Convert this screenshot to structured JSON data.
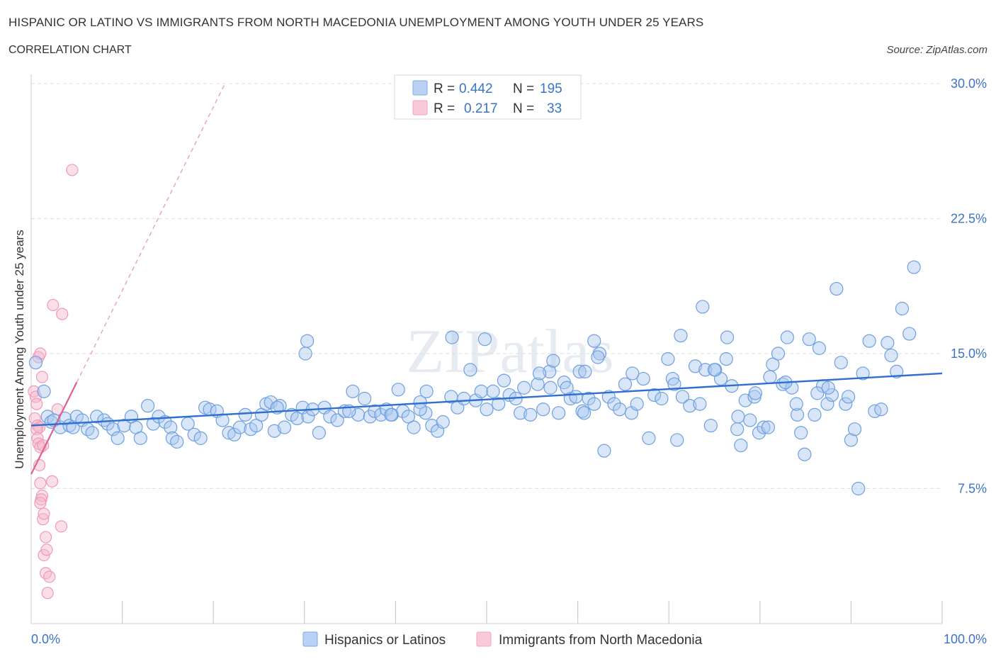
{
  "header": {
    "title": "HISPANIC OR LATINO VS IMMIGRANTS FROM NORTH MACEDONIA UNEMPLOYMENT AMONG YOUTH UNDER 25 YEARS",
    "subtitle": "CORRELATION CHART",
    "source": "Source: ZipAtlas.com"
  },
  "watermark": "ZIPatlas",
  "colors": {
    "blue": "#7aaae8",
    "blue_line": "#2f6fd0",
    "pink": "#f2a5bf",
    "pink_line": "#e0608e",
    "tick": "#3b73c8",
    "grid": "#dddddd"
  },
  "stats_legend": {
    "rows": [
      {
        "r_label": "R =",
        "r_value": "0.442",
        "n_label": "N =",
        "n_value": "195"
      },
      {
        "r_label": "R =",
        "r_value": "0.217",
        "n_label": "N =",
        "n_value": "33"
      }
    ]
  },
  "chart_data": {
    "type": "scatter",
    "title": "HISPANIC OR LATINO VS IMMIGRANTS FROM NORTH MACEDONIA UNEMPLOYMENT AMONG YOUTH UNDER 25 YEARS",
    "xlabel": "",
    "ylabel": "Unemployment Among Youth under 25 years",
    "xlim": [
      0,
      100
    ],
    "ylim": [
      0,
      30.0
    ],
    "x_tick_labels": [
      "0.0%",
      "100.0%"
    ],
    "y_ticks": [
      7.5,
      15.0,
      22.5,
      30.0
    ],
    "y_tick_labels": [
      "7.5%",
      "15.0%",
      "22.5%",
      "30.0%"
    ],
    "grid": true,
    "legend_position": "bottom",
    "series": [
      {
        "name": "Hispanics or Latinos",
        "R": 0.442,
        "N": 195,
        "trend": {
          "x": [
            0,
            100
          ],
          "y": [
            11.0,
            13.9
          ]
        },
        "points": [
          [
            0.5,
            14.5
          ],
          [
            1.4,
            12.9
          ],
          [
            1.8,
            11.5
          ],
          [
            2.2,
            11.2
          ],
          [
            2.5,
            11.3
          ],
          [
            3.2,
            10.9
          ],
          [
            3.7,
            11.4
          ],
          [
            4.2,
            11.0
          ],
          [
            4.6,
            10.9
          ],
          [
            5.0,
            11.5
          ],
          [
            5.6,
            11.3
          ],
          [
            6.2,
            10.8
          ],
          [
            6.7,
            10.6
          ],
          [
            7.2,
            11.5
          ],
          [
            8.0,
            11.3
          ],
          [
            8.4,
            11.1
          ],
          [
            9.0,
            10.8
          ],
          [
            9.5,
            10.3
          ],
          [
            10.2,
            11.0
          ],
          [
            11.0,
            11.5
          ],
          [
            11.5,
            10.9
          ],
          [
            12.0,
            10.3
          ],
          [
            12.8,
            12.1
          ],
          [
            13.4,
            11.1
          ],
          [
            14.0,
            11.5
          ],
          [
            14.7,
            11.2
          ],
          [
            15.3,
            10.9
          ],
          [
            15.5,
            10.3
          ],
          [
            16.0,
            10.1
          ],
          [
            17.2,
            11.1
          ],
          [
            17.9,
            10.5
          ],
          [
            18.6,
            10.3
          ],
          [
            19.1,
            12.0
          ],
          [
            19.6,
            11.9
          ],
          [
            20.4,
            11.8
          ],
          [
            21.0,
            11.3
          ],
          [
            21.7,
            10.6
          ],
          [
            22.3,
            10.5
          ],
          [
            22.9,
            10.9
          ],
          [
            23.5,
            11.6
          ],
          [
            24.1,
            10.8
          ],
          [
            24.7,
            11.0
          ],
          [
            25.3,
            11.6
          ],
          [
            25.8,
            12.2
          ],
          [
            26.3,
            12.3
          ],
          [
            26.7,
            10.7
          ],
          [
            27.3,
            12.1
          ],
          [
            27.8,
            10.9
          ],
          [
            28.6,
            11.6
          ],
          [
            29.2,
            11.4
          ],
          [
            29.8,
            12.0
          ],
          [
            30.4,
            11.5
          ],
          [
            30.9,
            11.9
          ],
          [
            31.6,
            10.6
          ],
          [
            32.2,
            12.0
          ],
          [
            32.8,
            11.5
          ],
          [
            33.6,
            11.3
          ],
          [
            34.4,
            11.8
          ],
          [
            35.3,
            12.9
          ],
          [
            35.9,
            11.6
          ],
          [
            36.6,
            12.5
          ],
          [
            37.2,
            11.5
          ],
          [
            37.7,
            11.8
          ],
          [
            38.4,
            11.6
          ],
          [
            39.0,
            11.9
          ],
          [
            39.6,
            11.6
          ],
          [
            40.3,
            13.0
          ],
          [
            40.8,
            11.8
          ],
          [
            41.4,
            11.5
          ],
          [
            42.0,
            10.9
          ],
          [
            42.7,
            12.3
          ],
          [
            43.3,
            11.7
          ],
          [
            44.0,
            11.0
          ],
          [
            44.6,
            10.7
          ],
          [
            45.2,
            11.2
          ],
          [
            46.1,
            12.6
          ],
          [
            46.8,
            12.0
          ],
          [
            47.5,
            12.5
          ],
          [
            48.2,
            14.1
          ],
          [
            48.8,
            12.4
          ],
          [
            49.4,
            12.9
          ],
          [
            50.0,
            11.9
          ],
          [
            50.7,
            12.9
          ],
          [
            51.3,
            12.2
          ],
          [
            51.9,
            13.5
          ],
          [
            52.5,
            12.7
          ],
          [
            53.2,
            12.5
          ],
          [
            53.7,
            11.7
          ],
          [
            54.1,
            13.1
          ],
          [
            54.8,
            11.6
          ],
          [
            55.6,
            13.3
          ],
          [
            56.2,
            11.9
          ],
          [
            56.9,
            14.0
          ],
          [
            57.3,
            14.6
          ],
          [
            57.9,
            11.7
          ],
          [
            58.5,
            13.4
          ],
          [
            59.2,
            12.5
          ],
          [
            59.8,
            12.6
          ],
          [
            60.5,
            11.8
          ],
          [
            61.2,
            12.5
          ],
          [
            61.8,
            12.2
          ],
          [
            62.4,
            15.0
          ],
          [
            62.9,
            9.6
          ],
          [
            63.4,
            12.6
          ],
          [
            64.0,
            12.2
          ],
          [
            64.6,
            11.9
          ],
          [
            65.2,
            13.3
          ],
          [
            65.9,
            11.7
          ],
          [
            66.5,
            12.2
          ],
          [
            67.2,
            13.6
          ],
          [
            67.8,
            10.3
          ],
          [
            68.4,
            12.7
          ],
          [
            69.2,
            12.5
          ],
          [
            69.9,
            14.7
          ],
          [
            70.4,
            13.6
          ],
          [
            70.9,
            10.2
          ],
          [
            71.5,
            12.6
          ],
          [
            72.3,
            12.1
          ],
          [
            72.9,
            14.3
          ],
          [
            73.4,
            12.2
          ],
          [
            74.0,
            14.1
          ],
          [
            74.6,
            11.0
          ],
          [
            75.1,
            14.1
          ],
          [
            75.7,
            13.6
          ],
          [
            76.3,
            14.7
          ],
          [
            76.9,
            13.2
          ],
          [
            77.5,
            10.8
          ],
          [
            77.9,
            9.9
          ],
          [
            78.4,
            12.4
          ],
          [
            78.9,
            11.3
          ],
          [
            79.4,
            12.6
          ],
          [
            79.9,
            10.6
          ],
          [
            80.4,
            10.9
          ],
          [
            80.9,
            10.9
          ],
          [
            81.4,
            14.4
          ],
          [
            82.0,
            15.0
          ],
          [
            82.5,
            13.3
          ],
          [
            83.0,
            15.9
          ],
          [
            83.5,
            13.1
          ],
          [
            84.1,
            11.6
          ],
          [
            84.5,
            10.6
          ],
          [
            84.9,
            9.4
          ],
          [
            85.4,
            15.8
          ],
          [
            86.0,
            11.6
          ],
          [
            86.5,
            15.3
          ],
          [
            86.9,
            13.2
          ],
          [
            87.4,
            12.2
          ],
          [
            87.9,
            12.7
          ],
          [
            88.4,
            18.6
          ],
          [
            88.9,
            14.5
          ],
          [
            89.4,
            12.2
          ],
          [
            89.7,
            12.6
          ],
          [
            90.0,
            10.2
          ],
          [
            90.4,
            10.8
          ],
          [
            90.8,
            7.5
          ],
          [
            91.3,
            13.9
          ],
          [
            92.0,
            15.7
          ],
          [
            92.6,
            11.8
          ],
          [
            93.3,
            11.9
          ],
          [
            94.0,
            15.6
          ],
          [
            94.4,
            14.9
          ],
          [
            95.0,
            14.0
          ],
          [
            95.6,
            17.5
          ],
          [
            96.4,
            16.1
          ],
          [
            96.9,
            19.8
          ],
          [
            61.8,
            15.7
          ],
          [
            62.2,
            14.8
          ],
          [
            60.2,
            14.0
          ],
          [
            49.8,
            15.8
          ],
          [
            46.2,
            15.9
          ],
          [
            30.3,
            15.7
          ],
          [
            30.1,
            15.0
          ],
          [
            43.4,
            12.9
          ],
          [
            57.0,
            13.1
          ],
          [
            39.5,
            11.6
          ],
          [
            27.0,
            12.0
          ],
          [
            34.9,
            11.8
          ],
          [
            42.7,
            11.9
          ],
          [
            55.8,
            13.9
          ],
          [
            58.8,
            13.1
          ],
          [
            66.0,
            13.9
          ],
          [
            60.8,
            14.0
          ],
          [
            70.6,
            13.3
          ],
          [
            71.3,
            16.0
          ],
          [
            75.0,
            14.1
          ],
          [
            79.5,
            12.8
          ],
          [
            81.1,
            13.7
          ],
          [
            82.8,
            13.4
          ],
          [
            84.0,
            12.2
          ],
          [
            86.3,
            12.8
          ],
          [
            87.5,
            13.1
          ],
          [
            76.4,
            15.9
          ],
          [
            73.7,
            17.6
          ],
          [
            77.6,
            11.5
          ],
          [
            60.7,
            11.7
          ]
        ]
      },
      {
        "name": "Immigrants from North Macedonia",
        "R": 0.217,
        "N": 33,
        "trend": {
          "x": [
            0,
            5
          ],
          "y": [
            8.3,
            13.4
          ]
        },
        "points": [
          [
            0.3,
            12.9
          ],
          [
            0.5,
            12.6
          ],
          [
            0.6,
            12.2
          ],
          [
            0.4,
            11.4
          ],
          [
            0.7,
            11.0
          ],
          [
            0.9,
            10.9
          ],
          [
            0.6,
            10.8
          ],
          [
            0.7,
            10.3
          ],
          [
            0.8,
            10.0
          ],
          [
            1.0,
            9.8
          ],
          [
            1.3,
            9.9
          ],
          [
            0.9,
            8.8
          ],
          [
            1.0,
            7.8
          ],
          [
            1.2,
            7.1
          ],
          [
            1.1,
            6.9
          ],
          [
            1.0,
            6.7
          ],
          [
            1.3,
            5.8
          ],
          [
            1.4,
            6.1
          ],
          [
            1.6,
            4.8
          ],
          [
            1.4,
            3.8
          ],
          [
            1.7,
            4.1
          ],
          [
            1.6,
            2.8
          ],
          [
            2.0,
            2.6
          ],
          [
            1.8,
            1.7
          ],
          [
            2.3,
            7.9
          ],
          [
            3.3,
            5.4
          ],
          [
            0.8,
            14.8
          ],
          [
            1.0,
            15.0
          ],
          [
            2.4,
            17.7
          ],
          [
            3.4,
            17.2
          ],
          [
            4.5,
            25.2
          ],
          [
            2.9,
            11.9
          ],
          [
            1.2,
            13.7
          ]
        ]
      }
    ]
  },
  "bottom_legend": {
    "items": [
      "Hispanics or Latinos",
      "Immigrants from North Macedonia"
    ]
  }
}
